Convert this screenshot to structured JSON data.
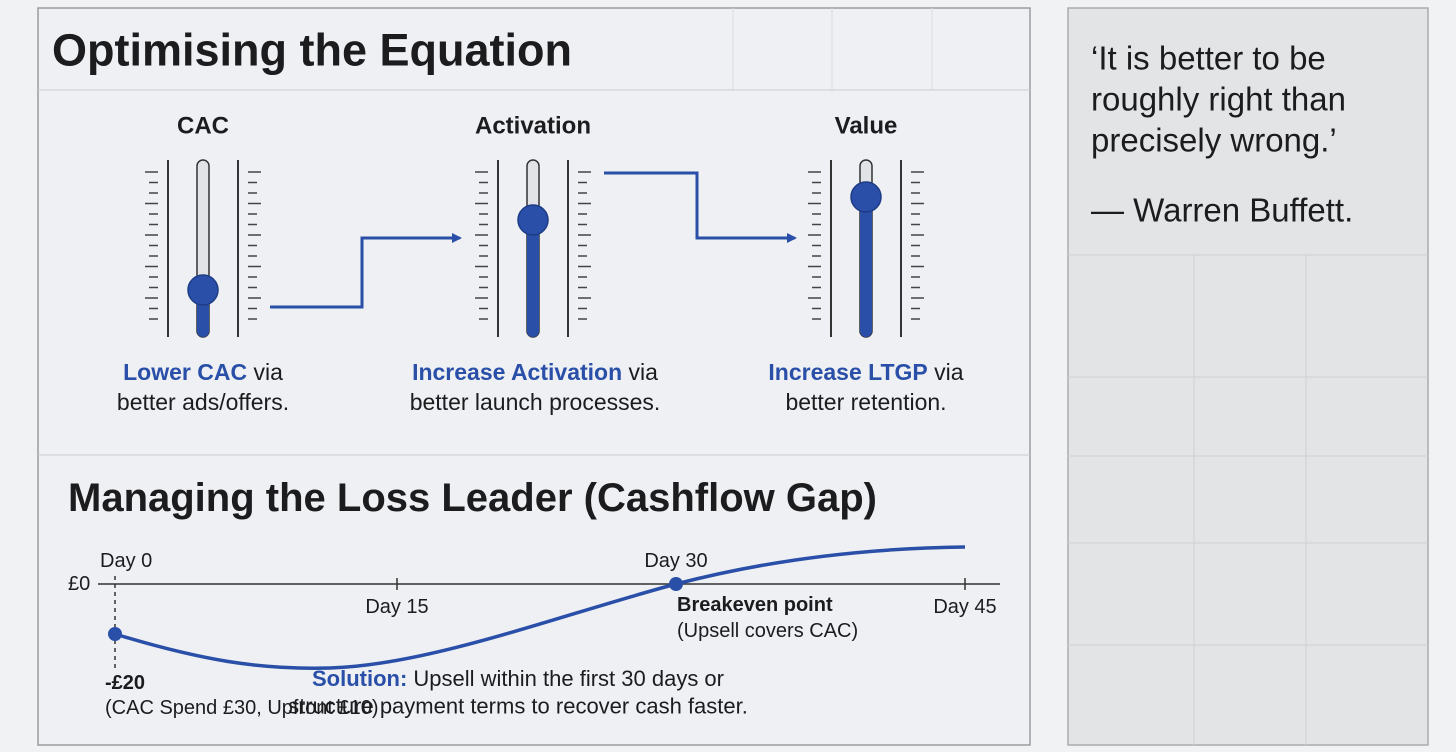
{
  "equation": {
    "title": "Optimising the Equation",
    "sliders": [
      {
        "label": "CAC",
        "highlight": "Lower CAC",
        "rest": " via",
        "line2": "better ads/offers."
      },
      {
        "label": "Activation",
        "highlight": "Increase Activation",
        "rest": " via",
        "line2": "better launch processes."
      },
      {
        "label": "Value",
        "highlight": "Increase LTGP",
        "rest": " via",
        "line2": "better retention."
      }
    ]
  },
  "quote": {
    "lines": [
      "‘It is better to be",
      "roughly right than",
      "precisely wrong.’"
    ],
    "author": "— Warren Buffett."
  },
  "cashflow": {
    "title": "Managing the Loss Leader (Cashflow Gap)",
    "zero_label": "£0",
    "days": [
      "Day 0",
      "Day 15",
      "Day 30",
      "Day 45"
    ],
    "start": {
      "value": "-£20",
      "note": "(CAC Spend £30, Upfront £10)"
    },
    "breakeven": {
      "label": "Breakeven point",
      "note": "(Upsell covers CAC)"
    },
    "solution": {
      "lead": "Solution:",
      "lines": [
        " Upsell within the first 30 days or",
        "structure payment terms to recover cash faster."
      ]
    }
  }
}
